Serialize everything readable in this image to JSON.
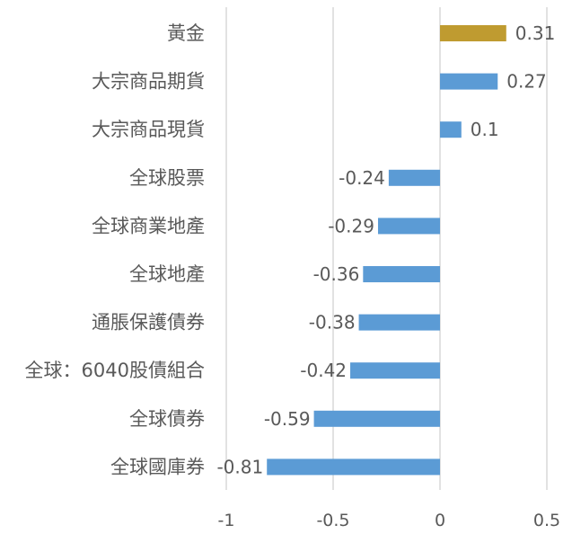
{
  "chart_data": {
    "type": "bar",
    "orientation": "horizontal",
    "categories": [
      "黃金",
      "大宗商品期貨",
      "大宗商品現貨",
      "全球股票",
      "全球商業地產",
      "全球地產",
      "通脹保護債券",
      "全球：6040股債組合",
      "全球債券",
      "全球國庫券"
    ],
    "values": [
      0.31,
      0.27,
      0.1,
      -0.24,
      -0.29,
      -0.36,
      -0.38,
      -0.42,
      -0.59,
      -0.81
    ],
    "value_labels": [
      "0.31",
      "0.27",
      "0.1",
      "-0.24",
      "-0.29",
      "-0.36",
      "-0.38",
      "-0.42",
      "-0.59",
      "-0.81"
    ],
    "xlim": [
      -1,
      0.5
    ],
    "xticks": [
      -1,
      -0.5,
      0,
      0.5
    ],
    "xtick_labels": [
      "-1",
      "-0.5",
      "0",
      "0.5"
    ],
    "grid": "vertical",
    "legend": "none",
    "title": "",
    "xlabel": "",
    "ylabel": "",
    "colors": {
      "highlight": "#bf9b30",
      "default": "#5b9bd5",
      "grid": "#d9d9d9",
      "text": "#595959"
    },
    "highlight_index": 0
  }
}
